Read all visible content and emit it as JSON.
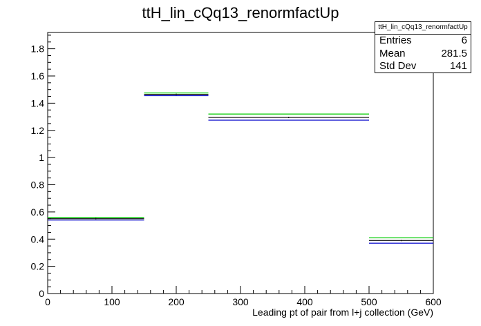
{
  "title": "ttH_lin_cQq13_renormfactUp",
  "stats": {
    "title": "ttH_lin_cQq13_renormfactUp",
    "rows": [
      {
        "label": "Entries",
        "value": "6"
      },
      {
        "label": "Mean",
        "value": "281.5"
      },
      {
        "label": "Std Dev",
        "value": "141"
      }
    ]
  },
  "chart_data": {
    "type": "step",
    "title": "ttH_lin_cQq13_renormfactUp",
    "xlabel": "Leading pt of pair from l+j collection (GeV)",
    "ylabel": "",
    "xlim": [
      0,
      600
    ],
    "ylim": [
      0,
      1.92
    ],
    "x_ticks": [
      0,
      100,
      200,
      300,
      400,
      500,
      600
    ],
    "y_ticks": [
      0,
      0.2,
      0.4,
      0.6,
      0.8,
      1,
      1.2,
      1.4,
      1.6,
      1.8
    ],
    "bin_edges": [
      0,
      150,
      250,
      500,
      600
    ],
    "series": [
      {
        "color": "#00cc00",
        "values": [
          0.56,
          1.475,
          1.32,
          0.41
        ]
      },
      {
        "color": "#000000",
        "values": [
          0.55,
          1.465,
          1.295,
          0.39
        ]
      },
      {
        "color": "#0000cc",
        "values": [
          0.54,
          1.455,
          1.275,
          0.37
        ]
      }
    ],
    "grid": false,
    "legend": "top-right stats box"
  }
}
